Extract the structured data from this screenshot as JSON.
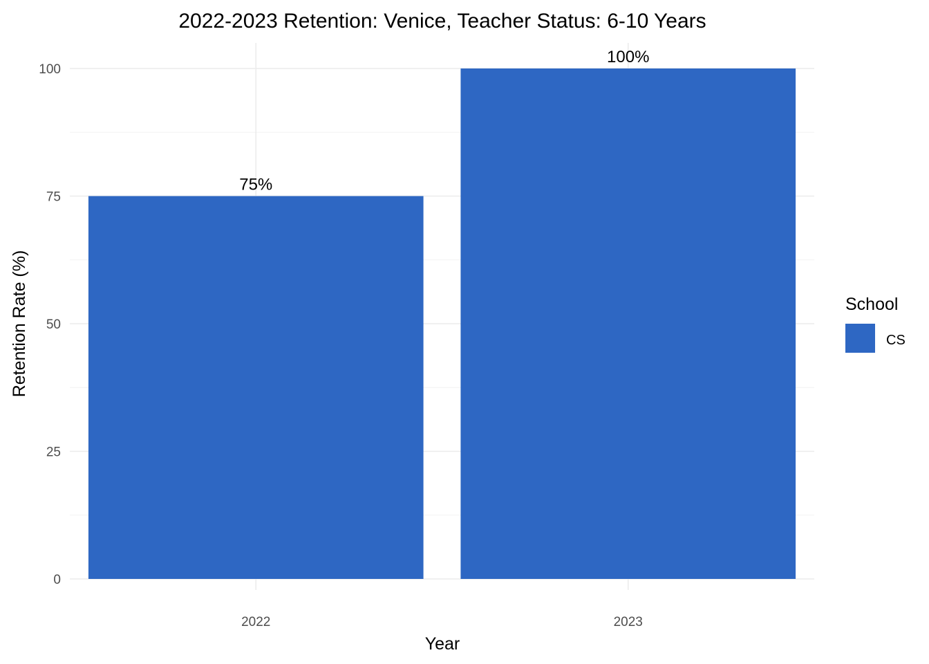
{
  "chart_data": {
    "type": "bar",
    "title": "2022-2023 Retention: Venice, Teacher Status: 6-10 Years",
    "xlabel": "Year",
    "ylabel": "Retention Rate (%)",
    "categories": [
      "2022",
      "2023"
    ],
    "series": [
      {
        "name": "CS",
        "values": [
          75,
          100
        ],
        "labels": [
          "75%",
          "100%"
        ],
        "color": "#2E67C3"
      }
    ],
    "ylim": [
      0,
      100
    ],
    "yticks": [
      0,
      25,
      50,
      75,
      100
    ],
    "grid": true,
    "legend": {
      "title": "School",
      "position": "right"
    }
  }
}
